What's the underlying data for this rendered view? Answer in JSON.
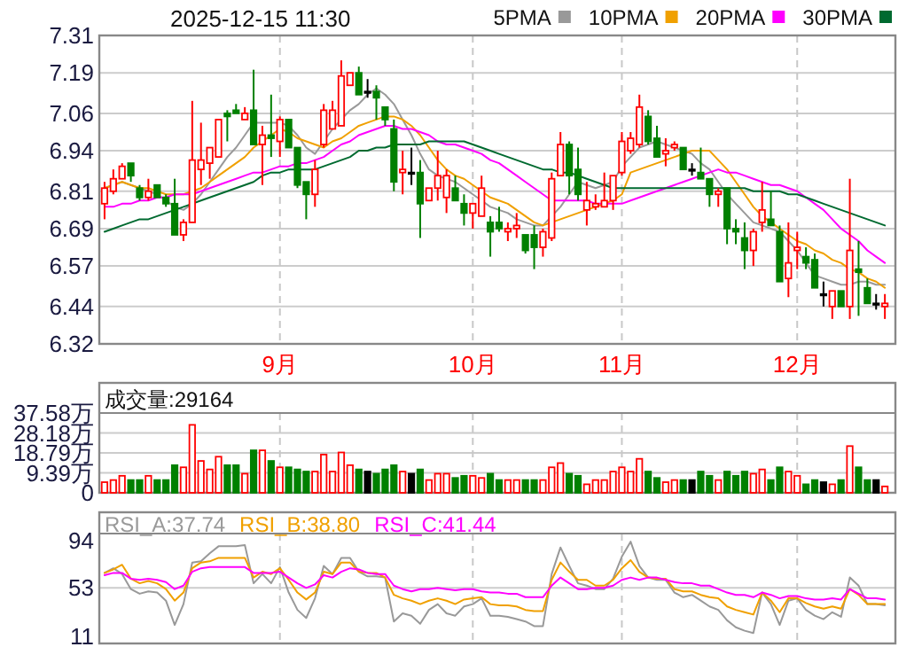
{
  "chart_data": [
    {
      "type": "candlestick",
      "title": "2025-12-15 11:30",
      "legend": "top right",
      "grid": true,
      "categories": [
        null,
        null,
        null,
        null,
        null,
        null,
        null,
        null,
        null,
        null,
        null,
        null,
        null,
        null,
        null,
        null,
        null,
        null,
        null,
        null,
        "9月",
        null,
        null,
        null,
        null,
        null,
        null,
        null,
        null,
        null,
        null,
        null,
        null,
        null,
        null,
        null,
        null,
        null,
        null,
        null,
        null,
        null,
        "10月",
        null,
        null,
        null,
        null,
        null,
        null,
        null,
        null,
        null,
        null,
        null,
        null,
        null,
        null,
        null,
        null,
        "11月",
        null,
        null,
        null,
        null,
        null,
        null,
        null,
        null,
        null,
        null,
        null,
        null,
        null,
        null,
        null,
        null,
        null,
        null,
        null,
        "12月",
        null,
        null,
        null,
        null,
        null,
        null,
        null,
        null,
        null,
        null
      ],
      "ohlc": [
        [
          6.77,
          6.84,
          6.72,
          6.82
        ],
        [
          6.81,
          6.88,
          6.8,
          6.85
        ],
        [
          6.85,
          6.9,
          6.85,
          6.89
        ],
        [
          6.9,
          6.9,
          6.84,
          6.86
        ],
        [
          6.82,
          6.83,
          6.78,
          6.79
        ],
        [
          6.79,
          6.85,
          6.78,
          6.81
        ],
        [
          6.83,
          6.83,
          6.79,
          6.79
        ],
        [
          6.79,
          6.8,
          6.76,
          6.77
        ],
        [
          6.77,
          6.85,
          6.67,
          6.67
        ],
        [
          6.67,
          6.72,
          6.65,
          6.71
        ],
        [
          6.71,
          7.1,
          6.71,
          6.91
        ],
        [
          6.88,
          7.03,
          6.83,
          6.91
        ],
        [
          6.9,
          6.95,
          6.85,
          6.95
        ],
        [
          6.92,
          7.04,
          6.92,
          7.04
        ],
        [
          7.06,
          7.07,
          6.97,
          7.05
        ],
        [
          7.07,
          7.09,
          7.06,
          7.06
        ],
        [
          7.04,
          7.08,
          7.04,
          7.06
        ],
        [
          7.07,
          7.2,
          6.96,
          6.96
        ],
        [
          6.96,
          7.02,
          6.83,
          6.99
        ],
        [
          6.99,
          7.12,
          6.92,
          6.98
        ],
        [
          6.97,
          7.05,
          6.92,
          7.04
        ],
        [
          7.04,
          7.04,
          6.95,
          6.95
        ],
        [
          6.95,
          6.95,
          6.82,
          6.83
        ],
        [
          6.84,
          6.84,
          6.72,
          6.8
        ],
        [
          6.8,
          6.91,
          6.76,
          6.88
        ],
        [
          6.96,
          7.09,
          6.95,
          7.07
        ],
        [
          7.01,
          7.1,
          7.01,
          7.07
        ],
        [
          7.02,
          7.23,
          7.02,
          7.18
        ],
        [
          7.15,
          7.19,
          7.15,
          7.19
        ],
        [
          7.19,
          7.21,
          7.12,
          7.12
        ],
        [
          7.13,
          7.17,
          7.11,
          7.13
        ],
        [
          7.13,
          7.15,
          7.04,
          7.11
        ],
        [
          7.08,
          7.08,
          7.02,
          7.04
        ],
        [
          7.01,
          7.04,
          6.81,
          6.84
        ],
        [
          6.87,
          6.94,
          6.8,
          6.88
        ],
        [
          6.87,
          6.95,
          6.83,
          6.87
        ],
        [
          6.87,
          6.91,
          6.66,
          6.77
        ],
        [
          6.78,
          6.82,
          6.78,
          6.82
        ],
        [
          6.82,
          6.94,
          6.78,
          6.86
        ],
        [
          6.79,
          6.88,
          6.74,
          6.86
        ],
        [
          6.82,
          6.86,
          6.78,
          6.78
        ],
        [
          6.77,
          6.8,
          6.7,
          6.74
        ],
        [
          6.74,
          6.77,
          6.69,
          6.77
        ],
        [
          6.73,
          6.86,
          6.73,
          6.82
        ],
        [
          6.71,
          6.73,
          6.6,
          6.68
        ],
        [
          6.71,
          6.76,
          6.68,
          6.69
        ],
        [
          6.68,
          6.71,
          6.65,
          6.69
        ],
        [
          6.69,
          6.74,
          6.66,
          6.7
        ],
        [
          6.67,
          6.67,
          6.61,
          6.62
        ],
        [
          6.67,
          6.7,
          6.56,
          6.63
        ],
        [
          6.63,
          6.69,
          6.6,
          6.68
        ],
        [
          6.66,
          6.87,
          6.65,
          6.85
        ],
        [
          6.86,
          7.0,
          6.86,
          6.96
        ],
        [
          6.96,
          6.97,
          6.8,
          6.86
        ],
        [
          6.88,
          6.95,
          6.78,
          6.8
        ],
        [
          6.75,
          6.84,
          6.7,
          6.78
        ],
        [
          6.76,
          6.8,
          6.75,
          6.77
        ],
        [
          6.76,
          6.87,
          6.76,
          6.78
        ],
        [
          6.78,
          6.86,
          6.75,
          6.86
        ],
        [
          6.87,
          7.0,
          6.86,
          6.97
        ],
        [
          6.94,
          7.0,
          6.93,
          6.98
        ],
        [
          6.96,
          7.12,
          6.95,
          7.08
        ],
        [
          7.05,
          7.07,
          6.96,
          6.97
        ],
        [
          6.98,
          7.02,
          6.92,
          6.92
        ],
        [
          6.93,
          6.98,
          6.89,
          6.94
        ],
        [
          6.95,
          6.97,
          6.94,
          6.96
        ],
        [
          6.95,
          6.95,
          6.88,
          6.88
        ],
        [
          6.88,
          6.9,
          6.86,
          6.88
        ],
        [
          6.87,
          6.95,
          6.85,
          6.85
        ],
        [
          6.85,
          6.85,
          6.76,
          6.8
        ],
        [
          6.8,
          6.82,
          6.76,
          6.81
        ],
        [
          6.82,
          6.82,
          6.64,
          6.69
        ],
        [
          6.69,
          6.72,
          6.64,
          6.68
        ],
        [
          6.66,
          6.71,
          6.56,
          6.62
        ],
        [
          6.62,
          6.69,
          6.57,
          6.68
        ],
        [
          6.71,
          6.84,
          6.68,
          6.75
        ],
        [
          6.72,
          6.81,
          6.7,
          6.7
        ],
        [
          6.68,
          6.7,
          6.52,
          6.52
        ],
        [
          6.53,
          6.71,
          6.47,
          6.58
        ],
        [
          6.62,
          6.68,
          6.56,
          6.63
        ],
        [
          6.6,
          6.63,
          6.56,
          6.58
        ],
        [
          6.59,
          6.61,
          6.5,
          6.5
        ],
        [
          6.48,
          6.52,
          6.44,
          6.48
        ],
        [
          6.44,
          6.49,
          6.4,
          6.49
        ],
        [
          6.49,
          6.49,
          6.44,
          6.44
        ],
        [
          6.44,
          6.85,
          6.4,
          6.62
        ],
        [
          6.56,
          6.65,
          6.41,
          6.55
        ],
        [
          6.5,
          6.53,
          6.45,
          6.45
        ],
        [
          6.45,
          6.48,
          6.43,
          6.45
        ],
        [
          6.44,
          6.48,
          6.4,
          6.45
        ]
      ],
      "series": [
        {
          "type": "line",
          "name": "5PMA",
          "color": "#999999",
          "values": [
            6.82,
            6.83,
            6.84,
            6.83,
            6.82,
            6.81,
            6.8,
            6.78,
            6.76,
            6.75,
            6.77,
            6.8,
            6.84,
            6.88,
            6.92,
            6.95,
            6.99,
            7.03,
            7.03,
            7.03,
            7.03,
            7.02,
            6.99,
            6.95,
            6.93,
            6.97,
            7.01,
            7.04,
            7.07,
            7.09,
            7.12,
            7.14,
            7.12,
            7.09,
            7.04,
            6.99,
            6.93,
            6.88,
            6.86,
            6.85,
            6.84,
            6.82,
            6.8,
            6.78,
            6.76,
            6.75,
            6.74,
            6.72,
            6.71,
            6.7,
            6.7,
            6.73,
            6.76,
            6.8,
            6.84,
            6.83,
            6.82,
            6.83,
            6.84,
            6.89,
            6.92,
            6.95,
            6.96,
            6.97,
            6.96,
            6.95,
            6.94,
            6.93,
            6.9,
            6.88,
            6.84,
            6.8,
            6.77,
            6.74,
            6.71,
            6.7,
            6.69,
            6.68,
            6.65,
            6.62,
            6.58,
            6.54,
            6.53,
            6.52,
            6.51,
            6.51,
            6.52,
            6.52,
            6.51,
            6.51
          ]
        },
        {
          "type": "line",
          "name": "10PMA",
          "color": "#f0a000",
          "values": [
            6.82,
            6.83,
            6.84,
            6.83,
            6.82,
            6.82,
            6.81,
            6.8,
            6.8,
            6.8,
            6.81,
            6.82,
            6.84,
            6.86,
            6.88,
            6.9,
            6.92,
            6.95,
            6.97,
            6.99,
            7.01,
            7.0,
            6.98,
            6.97,
            6.96,
            6.95,
            6.97,
            6.98,
            7.0,
            7.02,
            7.03,
            7.04,
            7.05,
            7.05,
            7.04,
            7.02,
            6.99,
            6.95,
            6.91,
            6.88,
            6.86,
            6.85,
            6.83,
            6.81,
            6.79,
            6.78,
            6.77,
            6.75,
            6.73,
            6.71,
            6.7,
            6.71,
            6.72,
            6.73,
            6.74,
            6.75,
            6.76,
            6.77,
            6.78,
            6.8,
            6.87,
            6.88,
            6.89,
            6.9,
            6.91,
            6.92,
            6.93,
            6.94,
            6.94,
            6.94,
            6.91,
            6.88,
            6.84,
            6.8,
            6.76,
            6.73,
            6.71,
            6.69,
            6.67,
            6.65,
            6.64,
            6.62,
            6.61,
            6.59,
            6.58,
            6.56,
            6.55,
            6.53,
            6.52,
            6.5
          ]
        },
        {
          "type": "line",
          "name": "20PMA",
          "color": "#ff00ff",
          "values": [
            6.76,
            6.76,
            6.77,
            6.77,
            6.78,
            6.78,
            6.79,
            6.79,
            6.8,
            6.8,
            6.8,
            6.81,
            6.82,
            6.83,
            6.84,
            6.85,
            6.86,
            6.87,
            6.87,
            6.88,
            6.89,
            6.89,
            6.9,
            6.9,
            6.91,
            6.92,
            6.94,
            6.96,
            6.97,
            6.99,
            7.0,
            7.01,
            7.02,
            7.02,
            7.01,
            7.01,
            7.0,
            6.99,
            6.97,
            6.96,
            6.96,
            6.95,
            6.94,
            6.93,
            6.91,
            6.9,
            6.88,
            6.86,
            6.84,
            6.82,
            6.8,
            6.78,
            6.78,
            6.78,
            6.78,
            6.78,
            6.77,
            6.77,
            6.77,
            6.77,
            6.78,
            6.79,
            6.8,
            6.81,
            6.82,
            6.83,
            6.84,
            6.85,
            6.86,
            6.87,
            6.88,
            6.87,
            6.87,
            6.86,
            6.85,
            6.84,
            6.83,
            6.83,
            6.82,
            6.81,
            6.79,
            6.77,
            6.75,
            6.72,
            6.69,
            6.67,
            6.65,
            6.62,
            6.6,
            6.58
          ]
        },
        {
          "type": "line",
          "name": "30PMA",
          "color": "#006a30",
          "values": [
            6.68,
            6.69,
            6.7,
            6.71,
            6.72,
            6.72,
            6.73,
            6.74,
            6.75,
            6.76,
            6.77,
            6.78,
            6.79,
            6.8,
            6.81,
            6.82,
            6.83,
            6.84,
            6.86,
            6.87,
            6.87,
            6.88,
            6.88,
            6.88,
            6.88,
            6.89,
            6.9,
            6.91,
            6.92,
            6.94,
            6.94,
            6.95,
            6.95,
            6.96,
            6.96,
            6.96,
            6.96,
            6.97,
            6.97,
            6.97,
            6.97,
            6.97,
            6.96,
            6.95,
            6.94,
            6.93,
            6.92,
            6.91,
            6.9,
            6.89,
            6.88,
            6.88,
            6.87,
            6.87,
            6.86,
            6.85,
            6.84,
            6.83,
            6.82,
            6.82,
            6.82,
            6.82,
            6.82,
            6.82,
            6.82,
            6.82,
            6.82,
            6.82,
            6.82,
            6.82,
            6.82,
            6.82,
            6.82,
            6.82,
            6.81,
            6.81,
            6.81,
            6.81,
            6.8,
            6.8,
            6.79,
            6.78,
            6.77,
            6.76,
            6.75,
            6.74,
            6.73,
            6.72,
            6.71,
            6.7
          ]
        }
      ],
      "ylim": [
        6.32,
        7.31
      ],
      "yticks": [
        6.32,
        6.44,
        6.57,
        6.69,
        6.81,
        6.94,
        7.06,
        7.19,
        7.31
      ]
    },
    {
      "type": "bar",
      "legend": "top left",
      "grid": true,
      "tick_labels": "y",
      "categories": [
        null,
        null,
        null,
        null,
        null,
        null,
        null,
        null,
        null,
        null,
        null,
        null,
        null,
        null,
        null,
        null,
        null,
        null,
        null,
        null,
        null,
        null,
        null,
        null,
        null,
        null,
        null,
        null,
        null,
        null,
        null,
        null,
        null,
        null,
        null,
        null,
        null,
        null,
        null,
        null,
        null,
        null,
        null,
        null,
        null,
        null,
        null,
        null,
        null,
        null,
        null,
        null,
        null,
        null,
        null,
        null,
        null,
        null,
        null,
        null,
        null,
        null,
        null,
        null,
        null,
        null,
        null,
        null,
        null,
        null,
        null,
        null,
        null,
        null,
        null,
        null,
        null,
        null,
        null,
        null,
        null,
        null,
        null,
        null,
        null,
        null,
        null,
        null,
        null,
        null
      ],
      "series": [
        {
          "name": "成交量:29164",
          "values": [
            5,
            6,
            8,
            6,
            6,
            8,
            6,
            6,
            13,
            12,
            32,
            15,
            11,
            17,
            13,
            13,
            9,
            20,
            20,
            15,
            12,
            12,
            11,
            10,
            10,
            18,
            10,
            19,
            13,
            11,
            10,
            9,
            11,
            13,
            10,
            9,
            11,
            6,
            9,
            9,
            7,
            8,
            8,
            7,
            9,
            6,
            6,
            6,
            6,
            6,
            6,
            12,
            14,
            9,
            8,
            4,
            6,
            6,
            10,
            12,
            10,
            16,
            10,
            7,
            5,
            6,
            6,
            6,
            10,
            8,
            6,
            10,
            8,
            10,
            9,
            11,
            6,
            12,
            10,
            8,
            4,
            6,
            5,
            4,
            6,
            22,
            12,
            6,
            6,
            3
          ]
        }
      ],
      "ylim": [
        0,
        37.58
      ],
      "yticks": [
        0,
        {
          "value": 9.39,
          "label": "9.39万"
        },
        {
          "value": 18.79,
          "label": "18.79万"
        },
        {
          "value": 28.18,
          "label": "28.18万"
        },
        {
          "value": 37.58,
          "label": "37.58万"
        }
      ]
    },
    {
      "type": "line",
      "legend": "top left",
      "grid": "x",
      "tick_labels": "y",
      "categories": [
        null,
        null,
        null,
        null,
        null,
        null,
        null,
        null,
        null,
        null,
        null,
        null,
        null,
        null,
        null,
        null,
        null,
        null,
        null,
        null,
        null,
        null,
        null,
        null,
        null,
        null,
        null,
        null,
        null,
        null,
        null,
        null,
        null,
        null,
        null,
        null,
        null,
        null,
        null,
        null,
        null,
        null,
        null,
        null,
        null,
        null,
        null,
        null,
        null,
        null,
        null,
        null,
        null,
        null,
        null,
        null,
        null,
        null,
        null,
        null,
        null,
        null,
        null,
        null,
        null,
        null,
        null,
        null,
        null,
        null,
        null,
        null,
        null,
        null,
        null,
        null,
        null,
        null,
        null,
        null,
        null,
        null,
        null,
        null,
        null,
        null,
        null,
        null,
        null,
        null
      ],
      "series": [
        {
          "name": "RSI_A:37.74",
          "color": "#999999",
          "values": [
            66,
            70,
            65,
            52,
            48,
            50,
            49,
            42,
            21,
            39,
            75,
            76,
            83,
            89,
            89,
            89,
            90,
            57,
            65,
            57,
            71,
            49,
            34,
            27,
            44,
            72,
            65,
            79,
            79,
            67,
            63,
            63,
            62,
            24,
            31,
            29,
            22,
            34,
            39,
            31,
            29,
            37,
            39,
            44,
            29,
            29,
            28,
            26,
            24,
            20,
            20,
            65,
            88,
            72,
            57,
            55,
            52,
            52,
            61,
            80,
            93,
            72,
            62,
            60,
            60,
            49,
            45,
            47,
            42,
            37,
            34,
            25,
            19,
            16,
            14,
            49,
            39,
            21,
            42,
            44,
            34,
            29,
            26,
            32,
            28,
            62,
            55,
            39,
            39,
            38
          ]
        },
        {
          "name": "RSI_B:38.80",
          "color": "#f0a000",
          "values": [
            66,
            69,
            73,
            61,
            57,
            59,
            57,
            52,
            42,
            49,
            70,
            75,
            76,
            79,
            79,
            79,
            79,
            62,
            67,
            65,
            70,
            60,
            49,
            43,
            49,
            67,
            65,
            75,
            75,
            67,
            66,
            66,
            62,
            47,
            44,
            42,
            39,
            42,
            44,
            42,
            39,
            43,
            44,
            45,
            39,
            38,
            38,
            37,
            34,
            33,
            33,
            60,
            75,
            67,
            60,
            60,
            55,
            55,
            60,
            70,
            77,
            67,
            62,
            61,
            61,
            52,
            50,
            50,
            47,
            45,
            44,
            37,
            34,
            32,
            30,
            49,
            42,
            32,
            44,
            44,
            40,
            37,
            35,
            37,
            35,
            52,
            47,
            39,
            39,
            39
          ]
        },
        {
          "name": "RSI_C:41.44",
          "color": "#ff00ff",
          "values": [
            64,
            66,
            66,
            61,
            60,
            61,
            60,
            58,
            52,
            55,
            67,
            70,
            71,
            71,
            71,
            71,
            71,
            66,
            66,
            66,
            67,
            62,
            57,
            53,
            56,
            64,
            62,
            67,
            70,
            69,
            66,
            65,
            65,
            55,
            52,
            50,
            52,
            52,
            53,
            52,
            51,
            52,
            52,
            50,
            49,
            49,
            48,
            48,
            45,
            45,
            45,
            55,
            62,
            57,
            52,
            52,
            53,
            53,
            55,
            60,
            62,
            60,
            62,
            62,
            60,
            58,
            57,
            57,
            55,
            55,
            52,
            49,
            47,
            47,
            45,
            49,
            47,
            44,
            46,
            46,
            44,
            43,
            43,
            44,
            43,
            52,
            48,
            44,
            44,
            43
          ]
        }
      ],
      "ref_lines": [
        {
          "axis": "y",
          "value": 53,
          "color": "#cccccc"
        }
      ],
      "ylim": [
        5,
        100
      ],
      "yticks": [
        11,
        53,
        94
      ]
    }
  ]
}
